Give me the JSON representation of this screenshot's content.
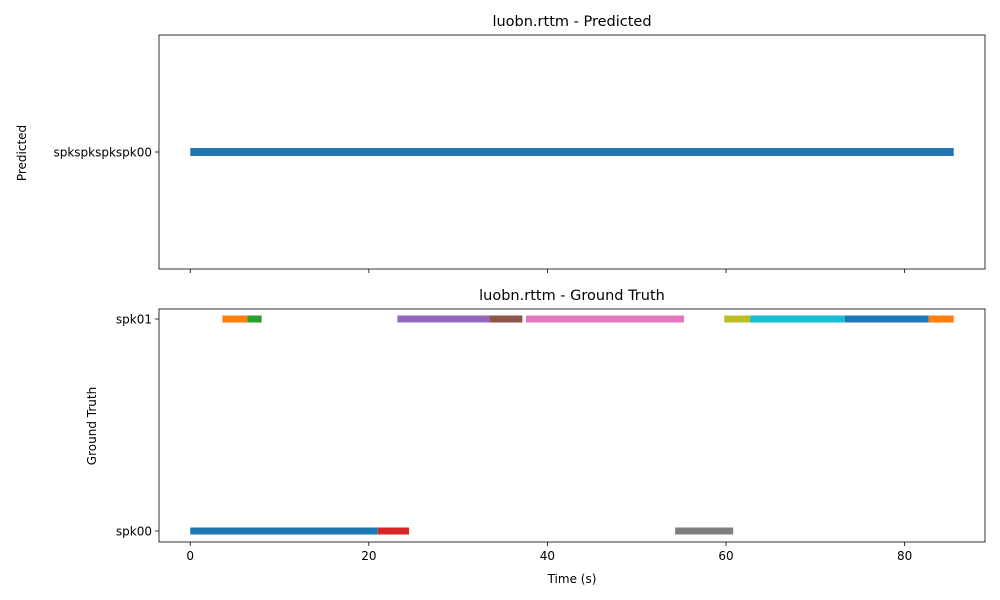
{
  "chart_data": [
    {
      "type": "timeline",
      "title": "luobn.rttm - Predicted",
      "ylabel": "Predicted",
      "xlabel": "",
      "xlim": [
        -3.5,
        89
      ],
      "x_ticks": [
        0,
        20,
        40,
        60,
        80
      ],
      "x_tick_labels_shown": false,
      "rows": [
        "spkspkspkspk00"
      ],
      "segments": [
        {
          "row": "spkspkspkspk00",
          "start": 0.0,
          "end": 85.5,
          "color": "#1f77b4"
        }
      ]
    },
    {
      "type": "timeline",
      "title": "luobn.rttm - Ground Truth",
      "ylabel": "Ground Truth",
      "xlabel": "Time (s)",
      "xlim": [
        -3.5,
        89
      ],
      "x_ticks": [
        0,
        20,
        40,
        60,
        80
      ],
      "x_tick_labels": [
        "0",
        "20",
        "40",
        "60",
        "80"
      ],
      "x_tick_labels_shown": true,
      "rows": [
        "spk00",
        "spk01"
      ],
      "segments": [
        {
          "row": "spk00",
          "start": 0.0,
          "end": 21.0,
          "color": "#1f77b4"
        },
        {
          "row": "spk00",
          "start": 21.0,
          "end": 24.5,
          "color": "#d62728"
        },
        {
          "row": "spk00",
          "start": 54.3,
          "end": 60.8,
          "color": "#7f7f7f"
        },
        {
          "row": "spk01",
          "start": 3.6,
          "end": 6.4,
          "color": "#ff7f0e"
        },
        {
          "row": "spk01",
          "start": 6.4,
          "end": 8.0,
          "color": "#2ca02c"
        },
        {
          "row": "spk01",
          "start": 23.2,
          "end": 33.5,
          "color": "#9467bd"
        },
        {
          "row": "spk01",
          "start": 33.5,
          "end": 37.2,
          "color": "#8c564b"
        },
        {
          "row": "spk01",
          "start": 37.6,
          "end": 55.3,
          "color": "#e377c2"
        },
        {
          "row": "spk01",
          "start": 59.8,
          "end": 62.7,
          "color": "#bcbd22"
        },
        {
          "row": "spk01",
          "start": 62.7,
          "end": 73.3,
          "color": "#17becf"
        },
        {
          "row": "spk01",
          "start": 73.3,
          "end": 82.7,
          "color": "#1f77b4"
        },
        {
          "row": "spk01",
          "start": 82.7,
          "end": 85.5,
          "color": "#ff7f0e"
        }
      ]
    }
  ]
}
